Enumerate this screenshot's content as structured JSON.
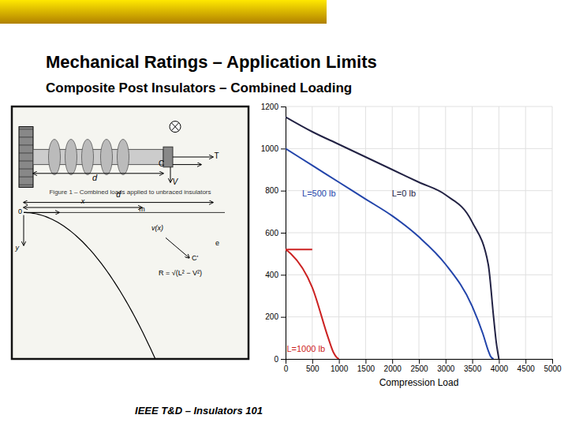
{
  "chart_data": {
    "type": "line",
    "title": "Mechanical Ratings – Application Limits",
    "subtitle": "Composite Post Insulators – Combined Loading",
    "footer": "IEEE T&D – Insulators 101",
    "x_label": "Compression Load",
    "xlim": [
      0,
      5000
    ],
    "ylim": [
      0,
      1200
    ],
    "xticks": [
      0,
      500,
      1000,
      1500,
      2000,
      2500,
      3000,
      3500,
      4000,
      4500,
      5000
    ],
    "yticks": [
      0,
      200,
      400,
      600,
      800,
      1000,
      1200
    ],
    "grid": true,
    "series": [
      {
        "name": "L=0 lb",
        "color": "#222244",
        "x": [
          0,
          500,
          1000,
          1500,
          2000,
          2500,
          3000,
          3500,
          3800,
          3900,
          3950,
          4000
        ],
        "values": [
          1150,
          1080,
          1020,
          960,
          900,
          840,
          780,
          650,
          450,
          200,
          80,
          0
        ]
      },
      {
        "name": "L=500 lb",
        "color": "#2244aa",
        "x": [
          0,
          500,
          1000,
          1500,
          2000,
          2500,
          3000,
          3500,
          3700,
          3800,
          3850,
          3900
        ],
        "values": [
          1000,
          920,
          840,
          760,
          680,
          580,
          450,
          250,
          120,
          40,
          10,
          0
        ]
      },
      {
        "name": "L=1000 lb",
        "color": "#cc2222",
        "x": [
          0,
          500,
          null,
          0,
          100,
          500,
          800,
          900,
          950,
          1000
        ],
        "values": [
          520,
          520,
          null,
          520,
          500,
          340,
          100,
          30,
          10,
          0
        ]
      }
    ],
    "annotations": [
      "T",
      "C",
      "V",
      "d",
      "Figure 1 – Combined loads applied to unbraced insulators",
      "d",
      "x",
      "0",
      "m",
      "v(x)",
      "e",
      "C'",
      "R = √(L² − V²)",
      "y"
    ]
  }
}
